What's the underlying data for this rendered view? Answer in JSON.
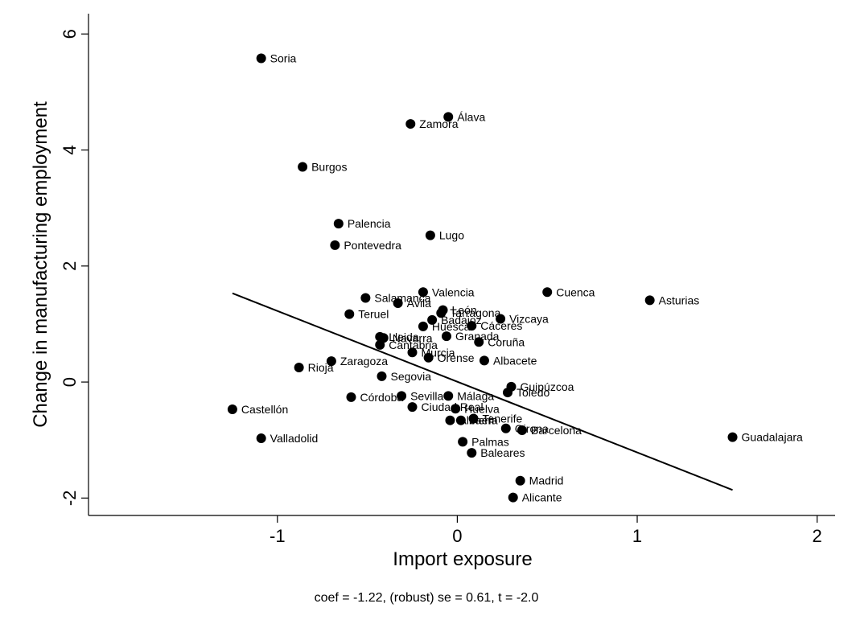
{
  "chart_data": {
    "type": "scatter",
    "xlabel": "Import exposure",
    "ylabel": "Change in manufacturing employment",
    "xlim": [
      -2.05,
      2.1
    ],
    "ylim": [
      -2.3,
      6.35
    ],
    "xticks": [
      -1,
      0,
      1,
      2
    ],
    "xtick_labels": [
      "-1",
      "0",
      "1",
      "2"
    ],
    "yticks": [
      -2,
      0,
      2,
      4,
      6
    ],
    "ytick_labels": [
      "-2",
      "0",
      "2",
      "4",
      "6"
    ],
    "grid": false,
    "legend": "none",
    "note": "coef = -1.22, (robust) se = 0.61, t = -2.0",
    "fit_line": {
      "x": [
        -1.25,
        1.53
      ],
      "y": [
        1.53,
        -1.86
      ]
    },
    "points": [
      {
        "label": "Soria",
        "x": -1.09,
        "y": 5.58
      },
      {
        "label": "Álava",
        "x": -0.05,
        "y": 4.57
      },
      {
        "label": "Zamora",
        "x": -0.26,
        "y": 4.45
      },
      {
        "label": "Burgos",
        "x": -0.86,
        "y": 3.71
      },
      {
        "label": "Palencia",
        "x": -0.66,
        "y": 2.73
      },
      {
        "label": "Lugo",
        "x": -0.15,
        "y": 2.53
      },
      {
        "label": "Pontevedra",
        "x": -0.68,
        "y": 2.36
      },
      {
        "label": "Valencia",
        "x": -0.19,
        "y": 1.55
      },
      {
        "label": "Cuenca",
        "x": 0.5,
        "y": 1.55
      },
      {
        "label": "Salamanca",
        "x": -0.51,
        "y": 1.45
      },
      {
        "label": "Asturias",
        "x": 1.07,
        "y": 1.41
      },
      {
        "label": "Ávila",
        "x": -0.33,
        "y": 1.36
      },
      {
        "label": "León",
        "x": -0.08,
        "y": 1.24
      },
      {
        "label": "Tarragona",
        "x": -0.09,
        "y": 1.19
      },
      {
        "label": "Teruel",
        "x": -0.6,
        "y": 1.17
      },
      {
        "label": "Vizcaya",
        "x": 0.24,
        "y": 1.09
      },
      {
        "label": "Badajoz",
        "x": -0.14,
        "y": 1.07
      },
      {
        "label": "Cáceres",
        "x": 0.08,
        "y": 0.97
      },
      {
        "label": "Huesca",
        "x": -0.19,
        "y": 0.96
      },
      {
        "label": "Granada",
        "x": -0.06,
        "y": 0.79
      },
      {
        "label": "Lleida",
        "x": -0.43,
        "y": 0.78
      },
      {
        "label": "Navarra",
        "x": -0.41,
        "y": 0.76
      },
      {
        "label": "Coruña",
        "x": 0.12,
        "y": 0.69
      },
      {
        "label": "Cantabria",
        "x": -0.43,
        "y": 0.64
      },
      {
        "label": "Murcia",
        "x": -0.25,
        "y": 0.51
      },
      {
        "label": "Orense",
        "x": -0.16,
        "y": 0.42
      },
      {
        "label": "Albacete",
        "x": 0.15,
        "y": 0.37
      },
      {
        "label": "Zaragoza",
        "x": -0.7,
        "y": 0.36
      },
      {
        "label": "Rioja",
        "x": -0.88,
        "y": 0.25
      },
      {
        "label": "Segovia",
        "x": -0.42,
        "y": 0.1
      },
      {
        "label": "Guipúzcoa",
        "x": 0.3,
        "y": -0.08
      },
      {
        "label": "Toledo",
        "x": 0.28,
        "y": -0.18
      },
      {
        "label": "Sevilla",
        "x": -0.31,
        "y": -0.24
      },
      {
        "label": "Málaga",
        "x": -0.05,
        "y": -0.24
      },
      {
        "label": "Córdoba",
        "x": -0.59,
        "y": -0.26
      },
      {
        "label": "Ciudad Real",
        "x": -0.25,
        "y": -0.43
      },
      {
        "label": "Huelva",
        "x": -0.01,
        "y": -0.46
      },
      {
        "label": "Castellón",
        "x": -1.25,
        "y": -0.47
      },
      {
        "label": "Tenerife",
        "x": 0.09,
        "y": -0.63
      },
      {
        "label": "Almería",
        "x": -0.04,
        "y": -0.66
      },
      {
        "label": "Jaén",
        "x": 0.02,
        "y": -0.66
      },
      {
        "label": "Girona",
        "x": 0.27,
        "y": -0.8
      },
      {
        "label": "Barcelona",
        "x": 0.36,
        "y": -0.83
      },
      {
        "label": "Valladolid",
        "x": -1.09,
        "y": -0.97
      },
      {
        "label": "Guadalajara",
        "x": 1.53,
        "y": -0.95
      },
      {
        "label": "Palmas",
        "x": 0.03,
        "y": -1.03
      },
      {
        "label": "Baleares",
        "x": 0.08,
        "y": -1.22
      },
      {
        "label": "Madrid",
        "x": 0.35,
        "y": -1.7
      },
      {
        "label": "Alicante",
        "x": 0.31,
        "y": -1.99
      }
    ]
  }
}
